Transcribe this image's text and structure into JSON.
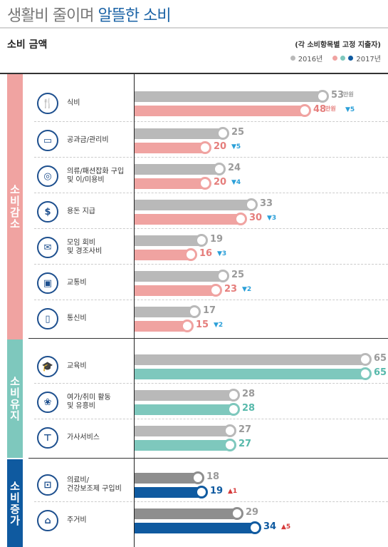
{
  "header": {
    "title_part1": "생활비 줄이며",
    "title_part2": "알뜰한 소비",
    "subtitle": "소비 금액",
    "note": "(각 소비항목별 고정 지출자)"
  },
  "legend": {
    "year1": "2016년",
    "year2": "2017년"
  },
  "colors": {
    "grey": "#b9b9b9",
    "grey_dark": "#8e8e8e",
    "decrease": "#f0a3a1",
    "maintain": "#7ec8bd",
    "increase": "#0f5aa0",
    "decrease_text": "#e57d7b",
    "maintain_text": "#57b9ab",
    "increase_text": "#0f5aa0",
    "down_arrow": "#2a9fd8",
    "up_arrow": "#d63a3a"
  },
  "groups": [
    {
      "label": "소비감소",
      "color": "#f0a3a1"
    },
    {
      "label": "소비유지",
      "color": "#7ec8bd"
    },
    {
      "label": "소비증가",
      "color": "#0f5aa0"
    }
  ],
  "unit": "만원",
  "chart_data": {
    "type": "bar",
    "orientation": "horizontal",
    "categories": [
      "식비",
      "공과금/관리비",
      "의류/패션잡화 구입 및 이/미용비",
      "용돈 지급",
      "모임 회비 및 경조사비",
      "교통비",
      "통신비",
      "교육비",
      "여가/취미 활동 및 유흥비",
      "가사서비스",
      "의료비/ 건강보조제 구입비",
      "주거비"
    ],
    "category_lines": [
      [
        "식비"
      ],
      [
        "공과금/관리비"
      ],
      [
        "의류/패션잡화 구입",
        "및 이/미용비"
      ],
      [
        "용돈 지급"
      ],
      [
        "모임 회비",
        "및 경조사비"
      ],
      [
        "교통비"
      ],
      [
        "통신비"
      ],
      [
        "교육비"
      ],
      [
        "여가/취미 활동",
        "및 유흥비"
      ],
      [
        "가사서비스"
      ],
      [
        "의료비/",
        "건강보조제 구입비"
      ],
      [
        "주거비"
      ]
    ],
    "category_group": [
      "소비감소",
      "소비감소",
      "소비감소",
      "소비감소",
      "소비감소",
      "소비감소",
      "소비감소",
      "소비유지",
      "소비유지",
      "소비유지",
      "소비증가",
      "소비증가"
    ],
    "series": [
      {
        "name": "2016년",
        "values": [
          53,
          25,
          24,
          33,
          19,
          25,
          17,
          65,
          28,
          27,
          18,
          29
        ]
      },
      {
        "name": "2017년",
        "values": [
          48,
          20,
          20,
          30,
          16,
          23,
          15,
          65,
          28,
          27,
          19,
          34
        ]
      }
    ],
    "changes": [
      "▼5",
      "▼5",
      "▼4",
      "▼3",
      "▼3",
      "▼2",
      "▼2",
      "",
      "",
      "",
      "▲1",
      "▲5"
    ]
  }
}
